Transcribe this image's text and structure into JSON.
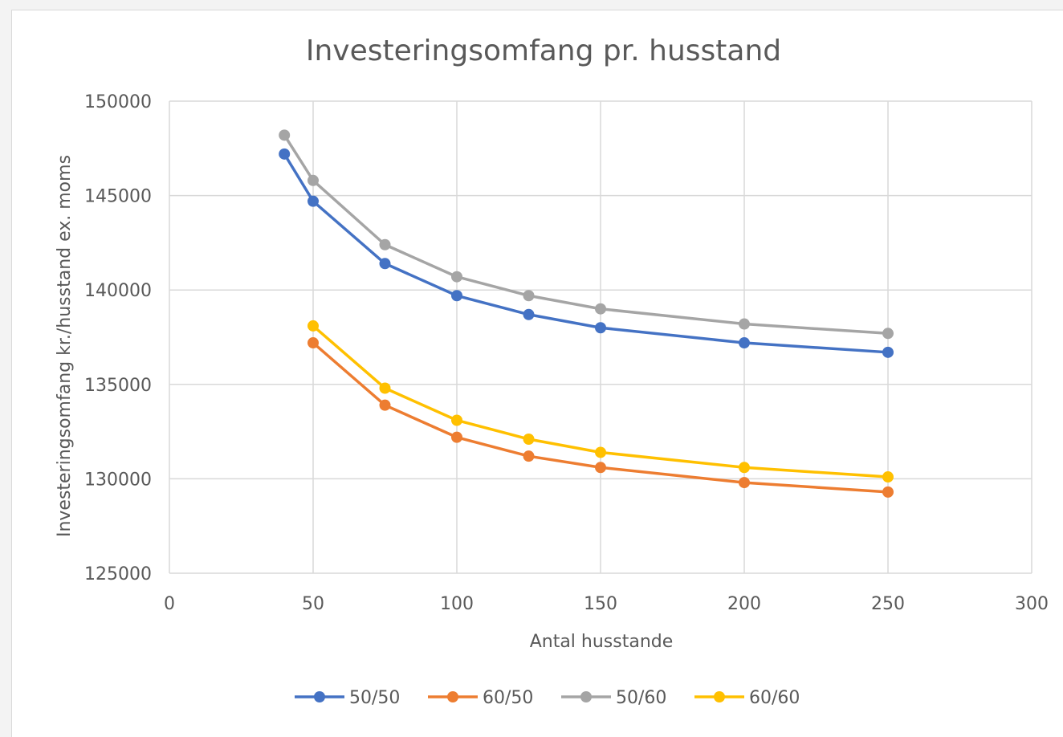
{
  "chart_data": {
    "type": "line",
    "title": "Investeringsomfang pr. husstand",
    "xlabel": "Antal husstande",
    "ylabel": "Investeringsomfang kr./husstand ex. moms",
    "xlim": [
      0,
      300
    ],
    "ylim": [
      125000,
      150000
    ],
    "x_ticks": [
      "0",
      "50",
      "100",
      "150",
      "200",
      "250",
      "300"
    ],
    "y_ticks": [
      "125000",
      "130000",
      "135000",
      "140000",
      "145000",
      "150000"
    ],
    "grid": true,
    "legend_position": "bottom",
    "series": [
      {
        "name": "50/50",
        "color": "#4472c4",
        "points": [
          [
            40,
            147200
          ],
          [
            50,
            144700
          ],
          [
            75,
            141400
          ],
          [
            100,
            139700
          ],
          [
            125,
            138700
          ],
          [
            150,
            138000
          ],
          [
            200,
            137200
          ],
          [
            250,
            136700
          ]
        ]
      },
      {
        "name": "60/50",
        "color": "#ed7d31",
        "points": [
          [
            50,
            137200
          ],
          [
            75,
            133900
          ],
          [
            100,
            132200
          ],
          [
            125,
            131200
          ],
          [
            150,
            130600
          ],
          [
            200,
            129800
          ],
          [
            250,
            129300
          ]
        ]
      },
      {
        "name": "50/60",
        "color": "#a5a5a5",
        "points": [
          [
            40,
            148200
          ],
          [
            50,
            145800
          ],
          [
            75,
            142400
          ],
          [
            100,
            140700
          ],
          [
            125,
            139700
          ],
          [
            150,
            139000
          ],
          [
            200,
            138200
          ],
          [
            250,
            137700
          ]
        ]
      },
      {
        "name": "60/60",
        "color": "#ffc000",
        "points": [
          [
            50,
            138100
          ],
          [
            75,
            134800
          ],
          [
            100,
            133100
          ],
          [
            125,
            132100
          ],
          [
            150,
            131400
          ],
          [
            200,
            130600
          ],
          [
            250,
            130100
          ]
        ]
      }
    ]
  }
}
